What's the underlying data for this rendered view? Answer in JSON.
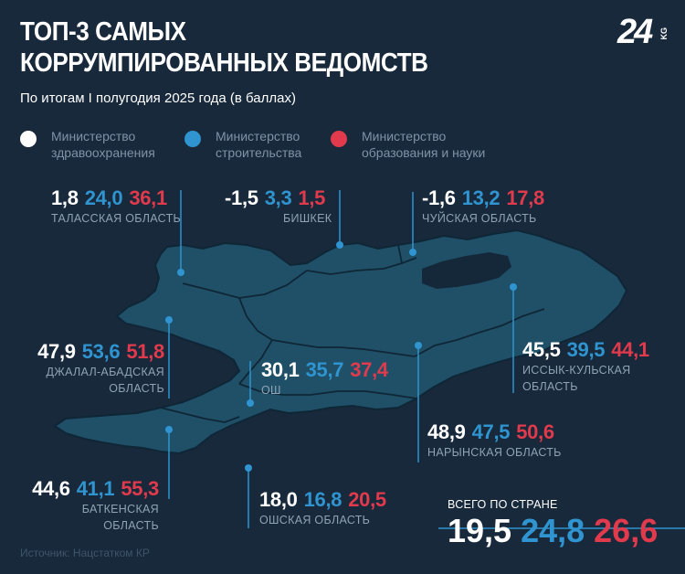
{
  "header": {
    "title_line1": "ТОП-3 САМЫХ",
    "title_line2": "КОРРУМПИРОВАННЫХ ВЕДОМСТВ",
    "subtitle": "По итогам I полугодия 2025 года (в баллах)",
    "logo_text": "24",
    "logo_suffix": "KG"
  },
  "legend": [
    {
      "label": "Министерство здравоохранения",
      "color": "#ffffff"
    },
    {
      "label": "Министерство строительства",
      "color": "#2f94cf"
    },
    {
      "label": "Министерство образования и науки",
      "color": "#e03a4c"
    }
  ],
  "colors": {
    "background": "#17293b",
    "map_fill": "#1f5068",
    "map_border": "#0f2636",
    "lake": "#14283a",
    "leader_line": "#2f94cf"
  },
  "regions": [
    {
      "id": "talas",
      "name": "ТАЛАССКАЯ ОБЛАСТЬ",
      "health": "1,8",
      "construction": "24,0",
      "education": "36,1"
    },
    {
      "id": "bishkek",
      "name": "БИШКЕК",
      "health": "-1,5",
      "construction": "3,3",
      "education": "1,5"
    },
    {
      "id": "chui",
      "name": "ЧУЙСКАЯ ОБЛАСТЬ",
      "health": "-1,6",
      "construction": "13,2",
      "education": "17,8"
    },
    {
      "id": "jalal",
      "name": "ДЖАЛАЛ-АБАДСКАЯ ОБЛАСТЬ",
      "name_line1": "ДЖАЛАЛ-АБАДСКАЯ",
      "name_line2": "ОБЛАСТЬ",
      "health": "47,9",
      "construction": "53,6",
      "education": "51,8"
    },
    {
      "id": "osh_city",
      "name": "ОШ",
      "health": "30,1",
      "construction": "35,7",
      "education": "37,4"
    },
    {
      "id": "issyk",
      "name": "ИССЫК-КУЛЬСКАЯ ОБЛАСТЬ",
      "name_line1": "ИССЫК-КУЛЬСКАЯ",
      "name_line2": "ОБЛАСТЬ",
      "health": "45,5",
      "construction": "39,5",
      "education": "44,1"
    },
    {
      "id": "naryn",
      "name": "НАРЫНСКАЯ ОБЛАСТЬ",
      "health": "48,9",
      "construction": "47,5",
      "education": "50,6"
    },
    {
      "id": "batken",
      "name": "БАТКЕНСКАЯ ОБЛАСТЬ",
      "health": "44,6",
      "construction": "41,1",
      "education": "55,3"
    },
    {
      "id": "osh_region",
      "name": "ОШСКАЯ ОБЛАСТЬ",
      "health": "18,0",
      "construction": "16,8",
      "education": "20,5"
    }
  ],
  "total": {
    "label": "ВСЕГО ПО СТРАНЕ",
    "health": "19,5",
    "construction": "24,8",
    "education": "26,6"
  },
  "source": "Источник: Нацстатком КР"
}
